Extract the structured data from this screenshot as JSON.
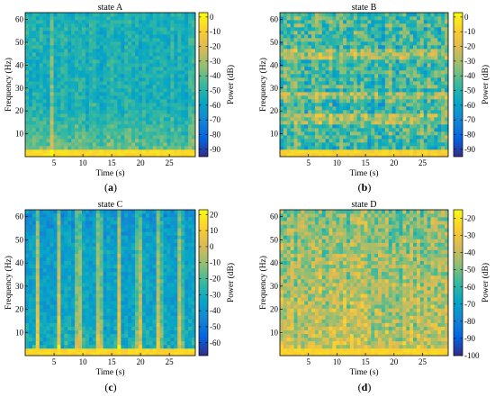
{
  "figure": {
    "panels": [
      {
        "id": "a",
        "label": "(a)",
        "letter": "a"
      },
      {
        "id": "b",
        "label": "(b)",
        "letter": "b"
      },
      {
        "id": "c",
        "label": "(c)",
        "letter": "c"
      },
      {
        "id": "d",
        "label": "(d)",
        "letter": "d"
      }
    ]
  },
  "chart_data": [
    {
      "type": "heatmap",
      "title": "state A",
      "xlabel": "Time (s)",
      "ylabel": "Frequency (Hz)",
      "colorbar_label": "Power (dB)",
      "xlim": [
        0,
        29.5
      ],
      "ylim": [
        0,
        63
      ],
      "xticks": [
        5,
        10,
        15,
        20,
        25
      ],
      "yticks": [
        10,
        20,
        30,
        40,
        50,
        60
      ],
      "clim": [
        -95,
        3
      ],
      "cticks": [
        0,
        -10,
        -20,
        -30,
        -40,
        -50,
        -60,
        -70,
        -80,
        -90
      ],
      "colormap": "parula",
      "pattern": "strong low-frequency band below ~5 Hz with a broadband burst near 4.5 s and fine vertical streaks"
    },
    {
      "type": "heatmap",
      "title": "state B",
      "xlabel": "Time (s)",
      "ylabel": "Frequency (Hz)",
      "colorbar_label": "Power (dB)",
      "xlim": [
        0,
        29.5
      ],
      "ylim": [
        0,
        63
      ],
      "xticks": [
        5,
        10,
        15,
        20,
        25
      ],
      "yticks": [
        10,
        20,
        30,
        40,
        50,
        60
      ],
      "clim": [
        -95,
        3
      ],
      "cticks": [
        0,
        -10,
        -20,
        -30,
        -40,
        -50,
        -60,
        -70,
        -80,
        -90
      ],
      "colormap": "parula",
      "pattern": "dense noisy texture with horizontal bands near 17, 27 and 45 Hz"
    },
    {
      "type": "heatmap",
      "title": "state C",
      "xlabel": "Time (s)",
      "ylabel": "Frequency (Hz)",
      "colorbar_label": "Power (dB)",
      "xlim": [
        0,
        29.5
      ],
      "ylim": [
        0,
        63
      ],
      "xticks": [
        5,
        10,
        15,
        20,
        25
      ],
      "yticks": [
        10,
        20,
        30,
        40,
        50,
        60
      ],
      "clim": [
        -68,
        23
      ],
      "cticks": [
        20,
        10,
        0,
        -10,
        -20,
        -30,
        -40,
        -50,
        -60
      ],
      "colormap": "parula",
      "pattern": "periodic broadband vertical bursts roughly every 3.5 s, strong low-frequency band"
    },
    {
      "type": "heatmap",
      "title": "state D",
      "xlabel": "Time (s)",
      "ylabel": "Frequency (Hz)",
      "colorbar_label": "Power (dB)",
      "xlim": [
        0,
        29.5
      ],
      "ylim": [
        0,
        63
      ],
      "xticks": [
        5,
        10,
        15,
        20,
        25
      ],
      "yticks": [
        10,
        20,
        30,
        40,
        50,
        60
      ],
      "clim": [
        -100,
        -15
      ],
      "cticks": [
        -20,
        -30,
        -40,
        -50,
        -60,
        -70,
        -80,
        -90,
        -100
      ],
      "colormap": "parula",
      "pattern": "high-power broadband noise, strongest at low frequencies"
    }
  ]
}
